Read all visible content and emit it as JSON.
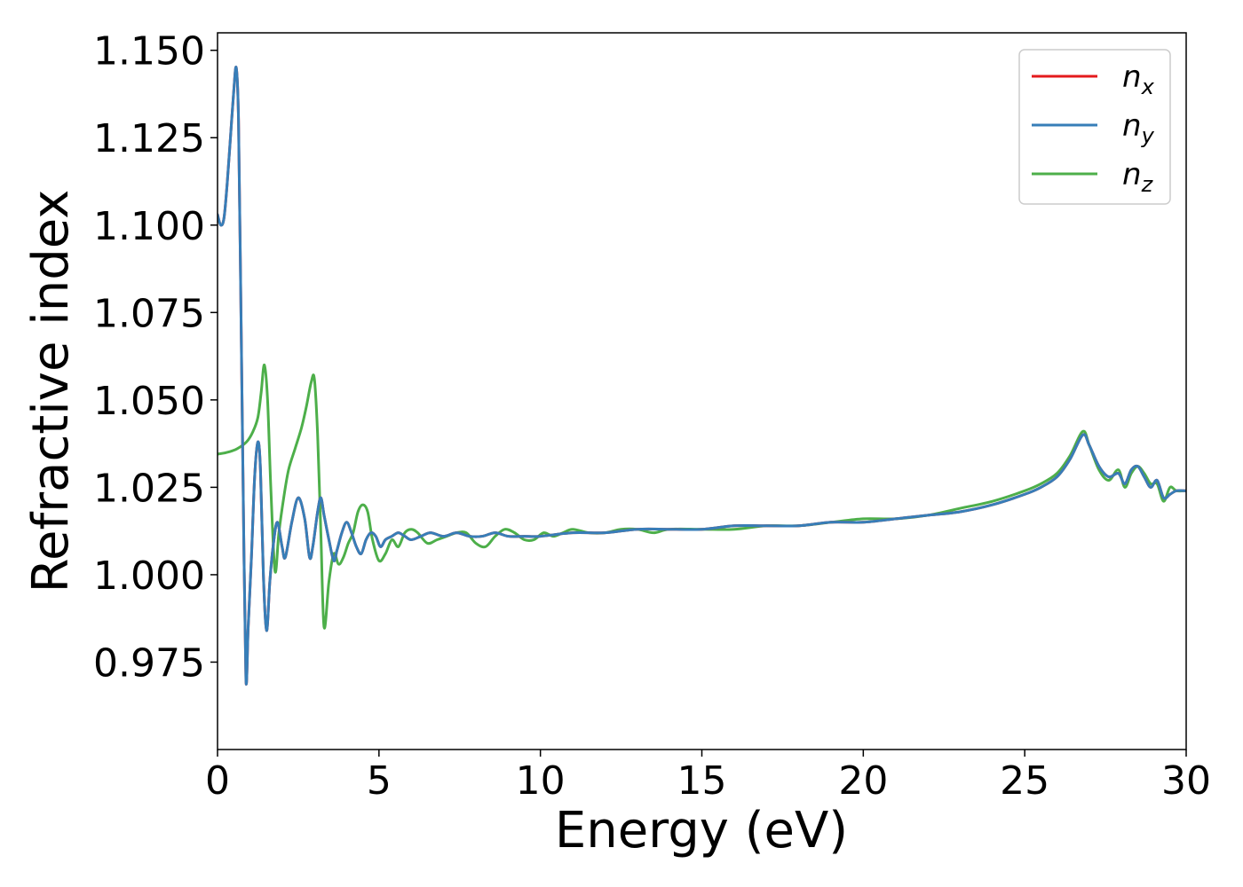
{
  "chart_data": {
    "type": "line",
    "xlabel": "Energy (eV)",
    "ylabel": "Refractive index",
    "xlim": [
      0,
      30
    ],
    "ylim": [
      0.95,
      1.155
    ],
    "x_ticks": [
      "0",
      "5",
      "10",
      "15",
      "20",
      "25",
      "30"
    ],
    "x_tick_values": [
      0,
      5,
      10,
      15,
      20,
      25,
      30
    ],
    "y_ticks": [
      "0.975",
      "1.000",
      "1.025",
      "1.050",
      "1.075",
      "1.100",
      "1.125",
      "1.150"
    ],
    "y_tick_values": [
      0.975,
      1.0,
      1.025,
      1.05,
      1.075,
      1.1,
      1.125,
      1.15
    ],
    "grid": false,
    "legend_position": "top-right",
    "series": [
      {
        "name": "n",
        "subscript": "x",
        "color": "#e41a1c",
        "x": [
          0,
          0.1,
          0.2,
          0.3,
          0.4,
          0.5,
          0.58,
          0.65,
          0.72,
          0.8,
          0.88,
          0.95,
          1.05,
          1.15,
          1.25,
          1.33,
          1.42,
          1.52,
          1.62,
          1.72,
          1.85,
          2.0,
          2.1,
          2.3,
          2.5,
          2.7,
          2.85,
          2.95,
          3.1,
          3.2,
          3.3,
          3.45,
          3.6,
          3.7,
          3.85,
          4.0,
          4.15,
          4.3,
          4.45,
          4.6,
          4.75,
          4.9,
          5.05,
          5.2,
          5.4,
          5.6,
          5.8,
          6.0,
          6.3,
          6.6,
          7.0,
          7.4,
          7.8,
          8.2,
          8.6,
          9.0,
          9.5,
          10,
          11,
          12,
          13,
          14,
          15,
          16,
          17,
          18,
          19,
          20,
          21,
          22,
          23,
          24,
          25,
          25.5,
          26.0,
          26.4,
          26.8,
          27.0,
          27.3,
          27.6,
          27.9,
          28.1,
          28.3,
          28.5,
          28.7,
          28.9,
          29.1,
          29.3,
          29.5,
          29.7,
          30
        ],
        "y": [
          1.103,
          1.1,
          1.102,
          1.112,
          1.125,
          1.138,
          1.145,
          1.13,
          1.08,
          1.02,
          0.97,
          0.985,
          1.005,
          1.028,
          1.038,
          1.03,
          1.0,
          0.984,
          0.998,
          1.008,
          1.015,
          1.008,
          1.005,
          1.015,
          1.022,
          1.016,
          1.005,
          1.008,
          1.018,
          1.022,
          1.017,
          1.01,
          1.004,
          1.007,
          1.012,
          1.015,
          1.012,
          1.008,
          1.006,
          1.01,
          1.012,
          1.011,
          1.008,
          1.01,
          1.011,
          1.012,
          1.011,
          1.01,
          1.011,
          1.012,
          1.011,
          1.012,
          1.011,
          1.011,
          1.012,
          1.011,
          1.011,
          1.011,
          1.012,
          1.012,
          1.013,
          1.013,
          1.013,
          1.014,
          1.014,
          1.014,
          1.015,
          1.015,
          1.016,
          1.017,
          1.018,
          1.02,
          1.023,
          1.025,
          1.028,
          1.033,
          1.04,
          1.037,
          1.031,
          1.028,
          1.029,
          1.026,
          1.03,
          1.031,
          1.028,
          1.025,
          1.027,
          1.022,
          1.023,
          1.024,
          1.024
        ]
      },
      {
        "name": "n",
        "subscript": "y",
        "color": "#377eb8",
        "x": [
          0,
          0.1,
          0.2,
          0.3,
          0.4,
          0.5,
          0.58,
          0.65,
          0.72,
          0.8,
          0.88,
          0.95,
          1.05,
          1.15,
          1.25,
          1.33,
          1.42,
          1.52,
          1.62,
          1.72,
          1.85,
          2.0,
          2.1,
          2.3,
          2.5,
          2.7,
          2.85,
          2.95,
          3.1,
          3.2,
          3.3,
          3.45,
          3.6,
          3.7,
          3.85,
          4.0,
          4.15,
          4.3,
          4.45,
          4.6,
          4.75,
          4.9,
          5.05,
          5.2,
          5.4,
          5.6,
          5.8,
          6.0,
          6.3,
          6.6,
          7.0,
          7.4,
          7.8,
          8.2,
          8.6,
          9.0,
          9.5,
          10,
          11,
          12,
          13,
          14,
          15,
          16,
          17,
          18,
          19,
          20,
          21,
          22,
          23,
          24,
          25,
          25.5,
          26.0,
          26.4,
          26.8,
          27.0,
          27.3,
          27.6,
          27.9,
          28.1,
          28.3,
          28.5,
          28.7,
          28.9,
          29.1,
          29.3,
          29.5,
          29.7,
          30
        ],
        "y": [
          1.103,
          1.1,
          1.102,
          1.112,
          1.125,
          1.138,
          1.145,
          1.13,
          1.08,
          1.02,
          0.97,
          0.985,
          1.005,
          1.028,
          1.038,
          1.03,
          1.0,
          0.984,
          0.998,
          1.008,
          1.015,
          1.008,
          1.005,
          1.015,
          1.022,
          1.016,
          1.005,
          1.008,
          1.018,
          1.022,
          1.017,
          1.01,
          1.004,
          1.007,
          1.012,
          1.015,
          1.012,
          1.008,
          1.006,
          1.01,
          1.012,
          1.011,
          1.008,
          1.01,
          1.011,
          1.012,
          1.011,
          1.01,
          1.011,
          1.012,
          1.011,
          1.012,
          1.011,
          1.011,
          1.012,
          1.011,
          1.011,
          1.011,
          1.012,
          1.012,
          1.013,
          1.013,
          1.013,
          1.014,
          1.014,
          1.014,
          1.015,
          1.015,
          1.016,
          1.017,
          1.018,
          1.02,
          1.023,
          1.025,
          1.028,
          1.033,
          1.04,
          1.037,
          1.031,
          1.028,
          1.029,
          1.026,
          1.03,
          1.031,
          1.028,
          1.025,
          1.027,
          1.022,
          1.023,
          1.024,
          1.024
        ]
      },
      {
        "name": "n",
        "subscript": "z",
        "color": "#4daf4a",
        "x": [
          0,
          0.3,
          0.6,
          0.9,
          1.1,
          1.25,
          1.35,
          1.45,
          1.55,
          1.65,
          1.78,
          1.9,
          2.05,
          2.2,
          2.4,
          2.6,
          2.75,
          2.9,
          3.0,
          3.1,
          3.2,
          3.3,
          3.45,
          3.6,
          3.75,
          3.9,
          4.05,
          4.2,
          4.35,
          4.5,
          4.65,
          4.8,
          5.0,
          5.2,
          5.4,
          5.6,
          5.8,
          6.0,
          6.2,
          6.5,
          6.8,
          7.1,
          7.4,
          7.7,
          8.0,
          8.3,
          8.6,
          8.9,
          9.2,
          9.5,
          9.8,
          10.1,
          10.4,
          10.7,
          11,
          11.5,
          12,
          12.5,
          13,
          13.5,
          14,
          15,
          16,
          17,
          18,
          19,
          20,
          21,
          22,
          23,
          24,
          25,
          25.5,
          26.0,
          26.4,
          26.8,
          27.0,
          27.3,
          27.6,
          27.9,
          28.1,
          28.3,
          28.5,
          28.7,
          28.9,
          29.1,
          29.3,
          29.5,
          29.7,
          30
        ],
        "y": [
          1.0345,
          1.035,
          1.036,
          1.038,
          1.041,
          1.045,
          1.052,
          1.06,
          1.05,
          1.025,
          1.001,
          1.012,
          1.022,
          1.03,
          1.036,
          1.042,
          1.048,
          1.055,
          1.056,
          1.04,
          1.012,
          0.985,
          0.998,
          1.006,
          1.003,
          1.005,
          1.009,
          1.012,
          1.018,
          1.02,
          1.018,
          1.01,
          1.004,
          1.006,
          1.01,
          1.008,
          1.012,
          1.013,
          1.012,
          1.009,
          1.01,
          1.011,
          1.012,
          1.012,
          1.009,
          1.008,
          1.011,
          1.013,
          1.012,
          1.01,
          1.01,
          1.012,
          1.011,
          1.012,
          1.013,
          1.012,
          1.012,
          1.013,
          1.013,
          1.012,
          1.013,
          1.013,
          1.013,
          1.014,
          1.014,
          1.015,
          1.016,
          1.016,
          1.017,
          1.019,
          1.021,
          1.024,
          1.026,
          1.029,
          1.034,
          1.041,
          1.037,
          1.03,
          1.027,
          1.03,
          1.025,
          1.029,
          1.031,
          1.029,
          1.026,
          1.026,
          1.021,
          1.025,
          1.024,
          1.024
        ]
      }
    ]
  }
}
